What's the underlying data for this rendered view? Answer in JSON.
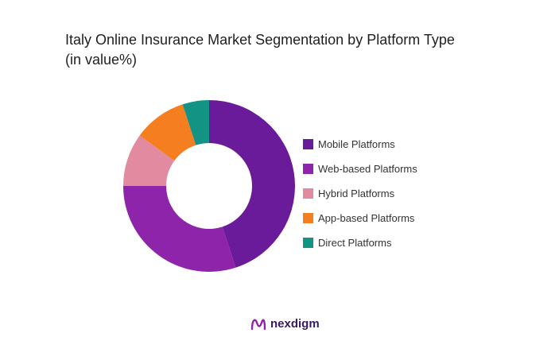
{
  "title_line1": "Italy Online Insurance Market Segmentation by Platform Type",
  "title_line2": "(in value%)",
  "brand_name": "nexdigm",
  "chart_data": {
    "type": "pie",
    "title": "Italy Online Insurance Market Segmentation by Platform Type (in value%)",
    "legend_position": "right",
    "donut": true,
    "categories": [
      "Mobile Platforms",
      "Web-based Platforms",
      "Hybrid Platforms",
      "App-based Platforms",
      "Direct Platforms"
    ],
    "values": [
      45,
      30,
      10,
      10,
      5
    ],
    "colors": [
      "#6A1B9A",
      "#8E24AA",
      "#E28AA0",
      "#F47E20",
      "#139384"
    ]
  }
}
